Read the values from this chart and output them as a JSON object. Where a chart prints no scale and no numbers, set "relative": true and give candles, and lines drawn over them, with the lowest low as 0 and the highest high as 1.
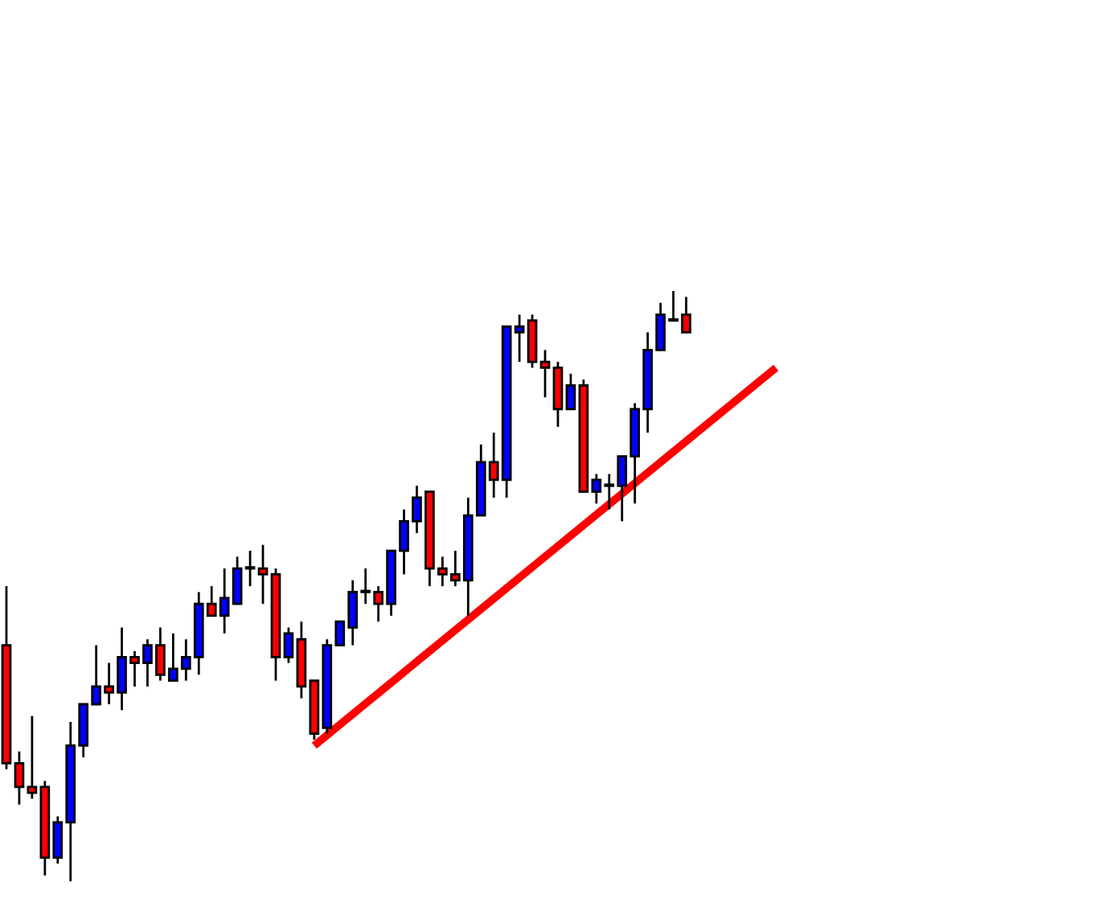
{
  "chart_data": {
    "type": "candlestick",
    "relative": true,
    "categories": [
      null,
      null,
      null,
      null,
      null,
      null,
      null,
      null,
      null,
      null,
      null,
      null,
      null,
      null,
      null,
      null,
      null,
      null,
      null,
      null,
      null,
      null,
      null,
      null,
      null,
      null,
      null,
      null,
      null,
      null,
      null,
      null,
      null,
      null,
      null,
      null,
      null,
      null,
      null,
      null,
      null,
      null,
      null,
      null,
      null,
      null,
      null,
      null,
      null,
      null,
      null,
      null,
      null,
      null,
      null,
      null,
      null,
      null,
      null,
      null,
      null,
      null,
      null,
      null,
      null,
      null,
      null,
      null,
      null,
      null,
      null,
      null,
      null,
      null,
      null,
      null,
      null,
      null,
      null,
      null,
      null,
      null,
      null,
      null,
      null,
      null
    ],
    "ohlc": [
      [
        0.4,
        0.5,
        0.19,
        0.2
      ],
      [
        0.2,
        0.22,
        0.13,
        0.16
      ],
      [
        0.16,
        0.28,
        0.14,
        0.15
      ],
      [
        0.16,
        0.17,
        0.01,
        0.04
      ],
      [
        0.04,
        0.11,
        0.03,
        0.1
      ],
      [
        0.1,
        0.27,
        0.0,
        0.23
      ],
      [
        0.23,
        0.3,
        0.21,
        0.3
      ],
      [
        0.3,
        0.4,
        0.3,
        0.33
      ],
      [
        0.33,
        0.37,
        0.3,
        0.32
      ],
      [
        0.32,
        0.43,
        0.29,
        0.38
      ],
      [
        0.38,
        0.39,
        0.33,
        0.37
      ],
      [
        0.37,
        0.41,
        0.33,
        0.4
      ],
      [
        0.4,
        0.43,
        0.34,
        0.35
      ],
      [
        0.34,
        0.42,
        0.34,
        0.36
      ],
      [
        0.36,
        0.41,
        0.34,
        0.38
      ],
      [
        0.38,
        0.49,
        0.35,
        0.47
      ],
      [
        0.47,
        0.5,
        0.45,
        0.45
      ],
      [
        0.45,
        0.53,
        0.42,
        0.48
      ],
      [
        0.47,
        0.55,
        0.47,
        0.53
      ],
      [
        0.53,
        0.56,
        0.5,
        0.53
      ],
      [
        0.53,
        0.57,
        0.47,
        0.52
      ],
      [
        0.52,
        0.53,
        0.34,
        0.38
      ],
      [
        0.38,
        0.43,
        0.37,
        0.42
      ],
      [
        0.41,
        0.44,
        0.31,
        0.33
      ],
      [
        0.34,
        0.34,
        0.24,
        0.25
      ],
      [
        0.26,
        0.41,
        0.25,
        0.4
      ],
      [
        0.4,
        0.44,
        0.4,
        0.44
      ],
      [
        0.43,
        0.51,
        0.4,
        0.49
      ],
      [
        0.49,
        0.53,
        0.47,
        0.49
      ],
      [
        0.49,
        0.5,
        0.44,
        0.47
      ],
      [
        0.47,
        0.56,
        0.45,
        0.56
      ],
      [
        0.56,
        0.63,
        0.52,
        0.61
      ],
      [
        0.61,
        0.67,
        0.59,
        0.65
      ],
      [
        0.66,
        0.66,
        0.5,
        0.53
      ],
      [
        0.53,
        0.55,
        0.5,
        0.52
      ],
      [
        0.52,
        0.56,
        0.5,
        0.51
      ],
      [
        0.51,
        0.65,
        0.45,
        0.62
      ],
      [
        0.62,
        0.74,
        0.62,
        0.71
      ],
      [
        0.71,
        0.76,
        0.65,
        0.68
      ],
      [
        0.68,
        0.94,
        0.65,
        0.94
      ],
      [
        0.93,
        0.96,
        0.88,
        0.94
      ],
      [
        0.95,
        0.96,
        0.87,
        0.88
      ],
      [
        0.88,
        0.9,
        0.82,
        0.87
      ],
      [
        0.87,
        0.88,
        0.77,
        0.8
      ],
      [
        0.8,
        0.86,
        0.8,
        0.84
      ],
      [
        0.84,
        0.85,
        0.66,
        0.66
      ],
      [
        0.66,
        0.69,
        0.64,
        0.68
      ],
      [
        0.67,
        0.69,
        0.63,
        0.67
      ],
      [
        0.67,
        0.72,
        0.61,
        0.72
      ],
      [
        0.72,
        0.81,
        0.64,
        0.8
      ],
      [
        0.8,
        0.93,
        0.76,
        0.9
      ],
      [
        0.9,
        0.98,
        0.9,
        0.96
      ],
      [
        0.95,
        1.0,
        0.95,
        0.95
      ],
      [
        0.96,
        0.99,
        0.93,
        0.93
      ],
      null,
      null,
      null,
      null,
      null,
      null,
      null,
      null,
      null,
      null,
      null,
      null,
      null,
      null,
      null,
      null,
      null,
      null,
      null,
      null,
      null,
      null,
      null,
      null,
      null,
      null,
      null,
      null,
      null,
      null,
      null,
      null
    ],
    "colors": [
      "#ff0000",
      "#ff0000",
      "#ff0000",
      "#ff0000",
      "#0000ff",
      "#0000ff",
      "#0000ff",
      "#0000ff",
      "#ff0000",
      "#0000ff",
      "#ff0000",
      "#0000ff",
      "#ff0000",
      "#0000ff",
      "#0000ff",
      "#0000ff",
      "#ff0000",
      "#0000ff",
      "#0000ff",
      "#000000",
      "#ff0000",
      "#ff0000",
      "#0000ff",
      "#ff0000",
      "#ff0000",
      "#0000ff",
      "#0000ff",
      "#0000ff",
      "#000000",
      "#ff0000",
      "#0000ff",
      "#0000ff",
      "#0000ff",
      "#ff0000",
      "#ff0000",
      "#ff0000",
      "#0000ff",
      "#0000ff",
      "#ff0000",
      "#0000ff",
      "#0000ff",
      "#ff0000",
      "#ff0000",
      "#ff0000",
      "#0000ff",
      "#ff0000",
      "#0000ff",
      "#ff0000",
      "#0000ff",
      "#0000ff",
      "#0000ff",
      "#0000ff",
      "#00ff00",
      "#ff0000",
      null,
      null,
      null,
      null,
      null,
      null,
      null,
      null,
      null,
      null,
      null,
      null,
      null,
      null,
      null,
      null,
      null,
      null,
      null,
      null,
      null,
      null,
      null,
      null,
      null,
      null,
      null,
      null,
      null,
      null,
      null,
      null
    ],
    "series": [
      {
        "type": "line",
        "color": "#ff0000",
        "values": [
          null,
          null,
          null,
          null,
          null,
          null,
          null,
          null,
          null,
          null,
          null,
          null,
          null,
          null,
          null,
          null,
          null,
          null,
          null,
          null,
          null,
          null,
          null,
          null,
          0.23,
          null,
          null,
          null,
          null,
          null,
          null,
          null,
          null,
          null,
          null,
          null,
          null,
          null,
          null,
          null,
          null,
          null,
          null,
          null,
          null,
          null,
          null,
          null,
          null,
          null,
          null,
          null,
          null,
          null,
          null,
          null,
          null,
          null,
          null,
          null,
          0.87,
          null,
          null,
          null,
          null,
          null,
          null,
          null,
          null,
          null,
          null,
          null,
          null,
          null,
          null,
          null,
          null,
          null,
          null,
          null,
          null,
          null,
          null,
          null,
          null,
          null
        ]
      }
    ],
    "legend": false
  }
}
